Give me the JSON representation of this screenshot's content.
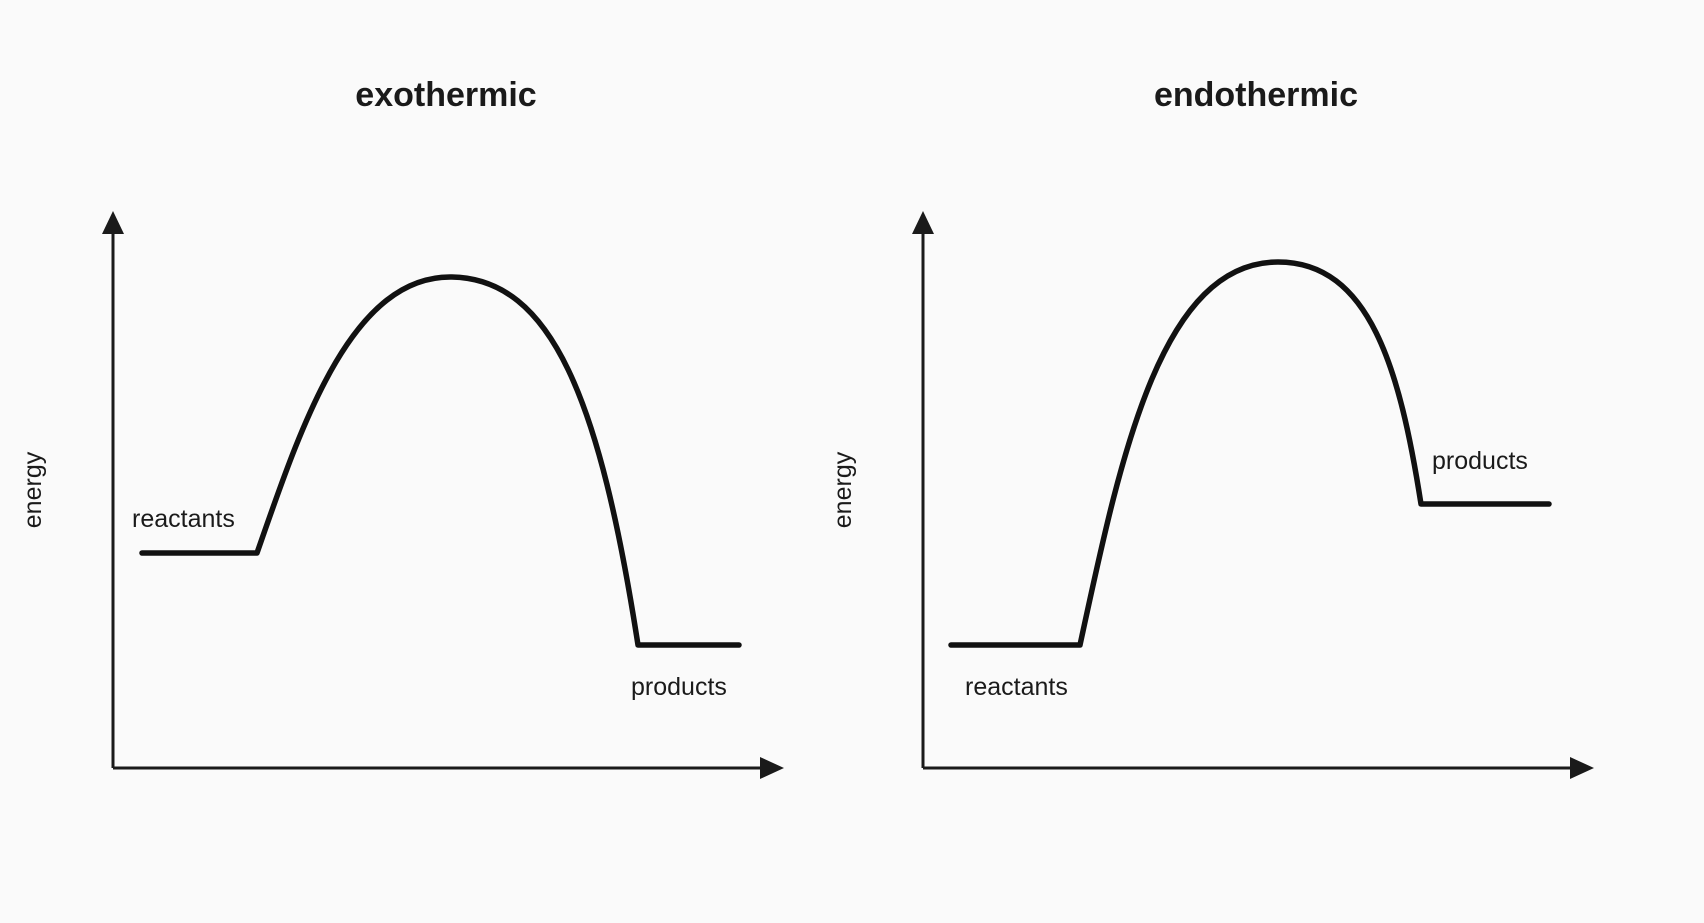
{
  "panels": [
    {
      "title": "exothermic",
      "y_axis_label": "energy",
      "reactants_label": "reactants",
      "products_label": "products"
    },
    {
      "title": "endothermic",
      "y_axis_label": "energy",
      "reactants_label": "reactants",
      "products_label": "products"
    }
  ]
}
